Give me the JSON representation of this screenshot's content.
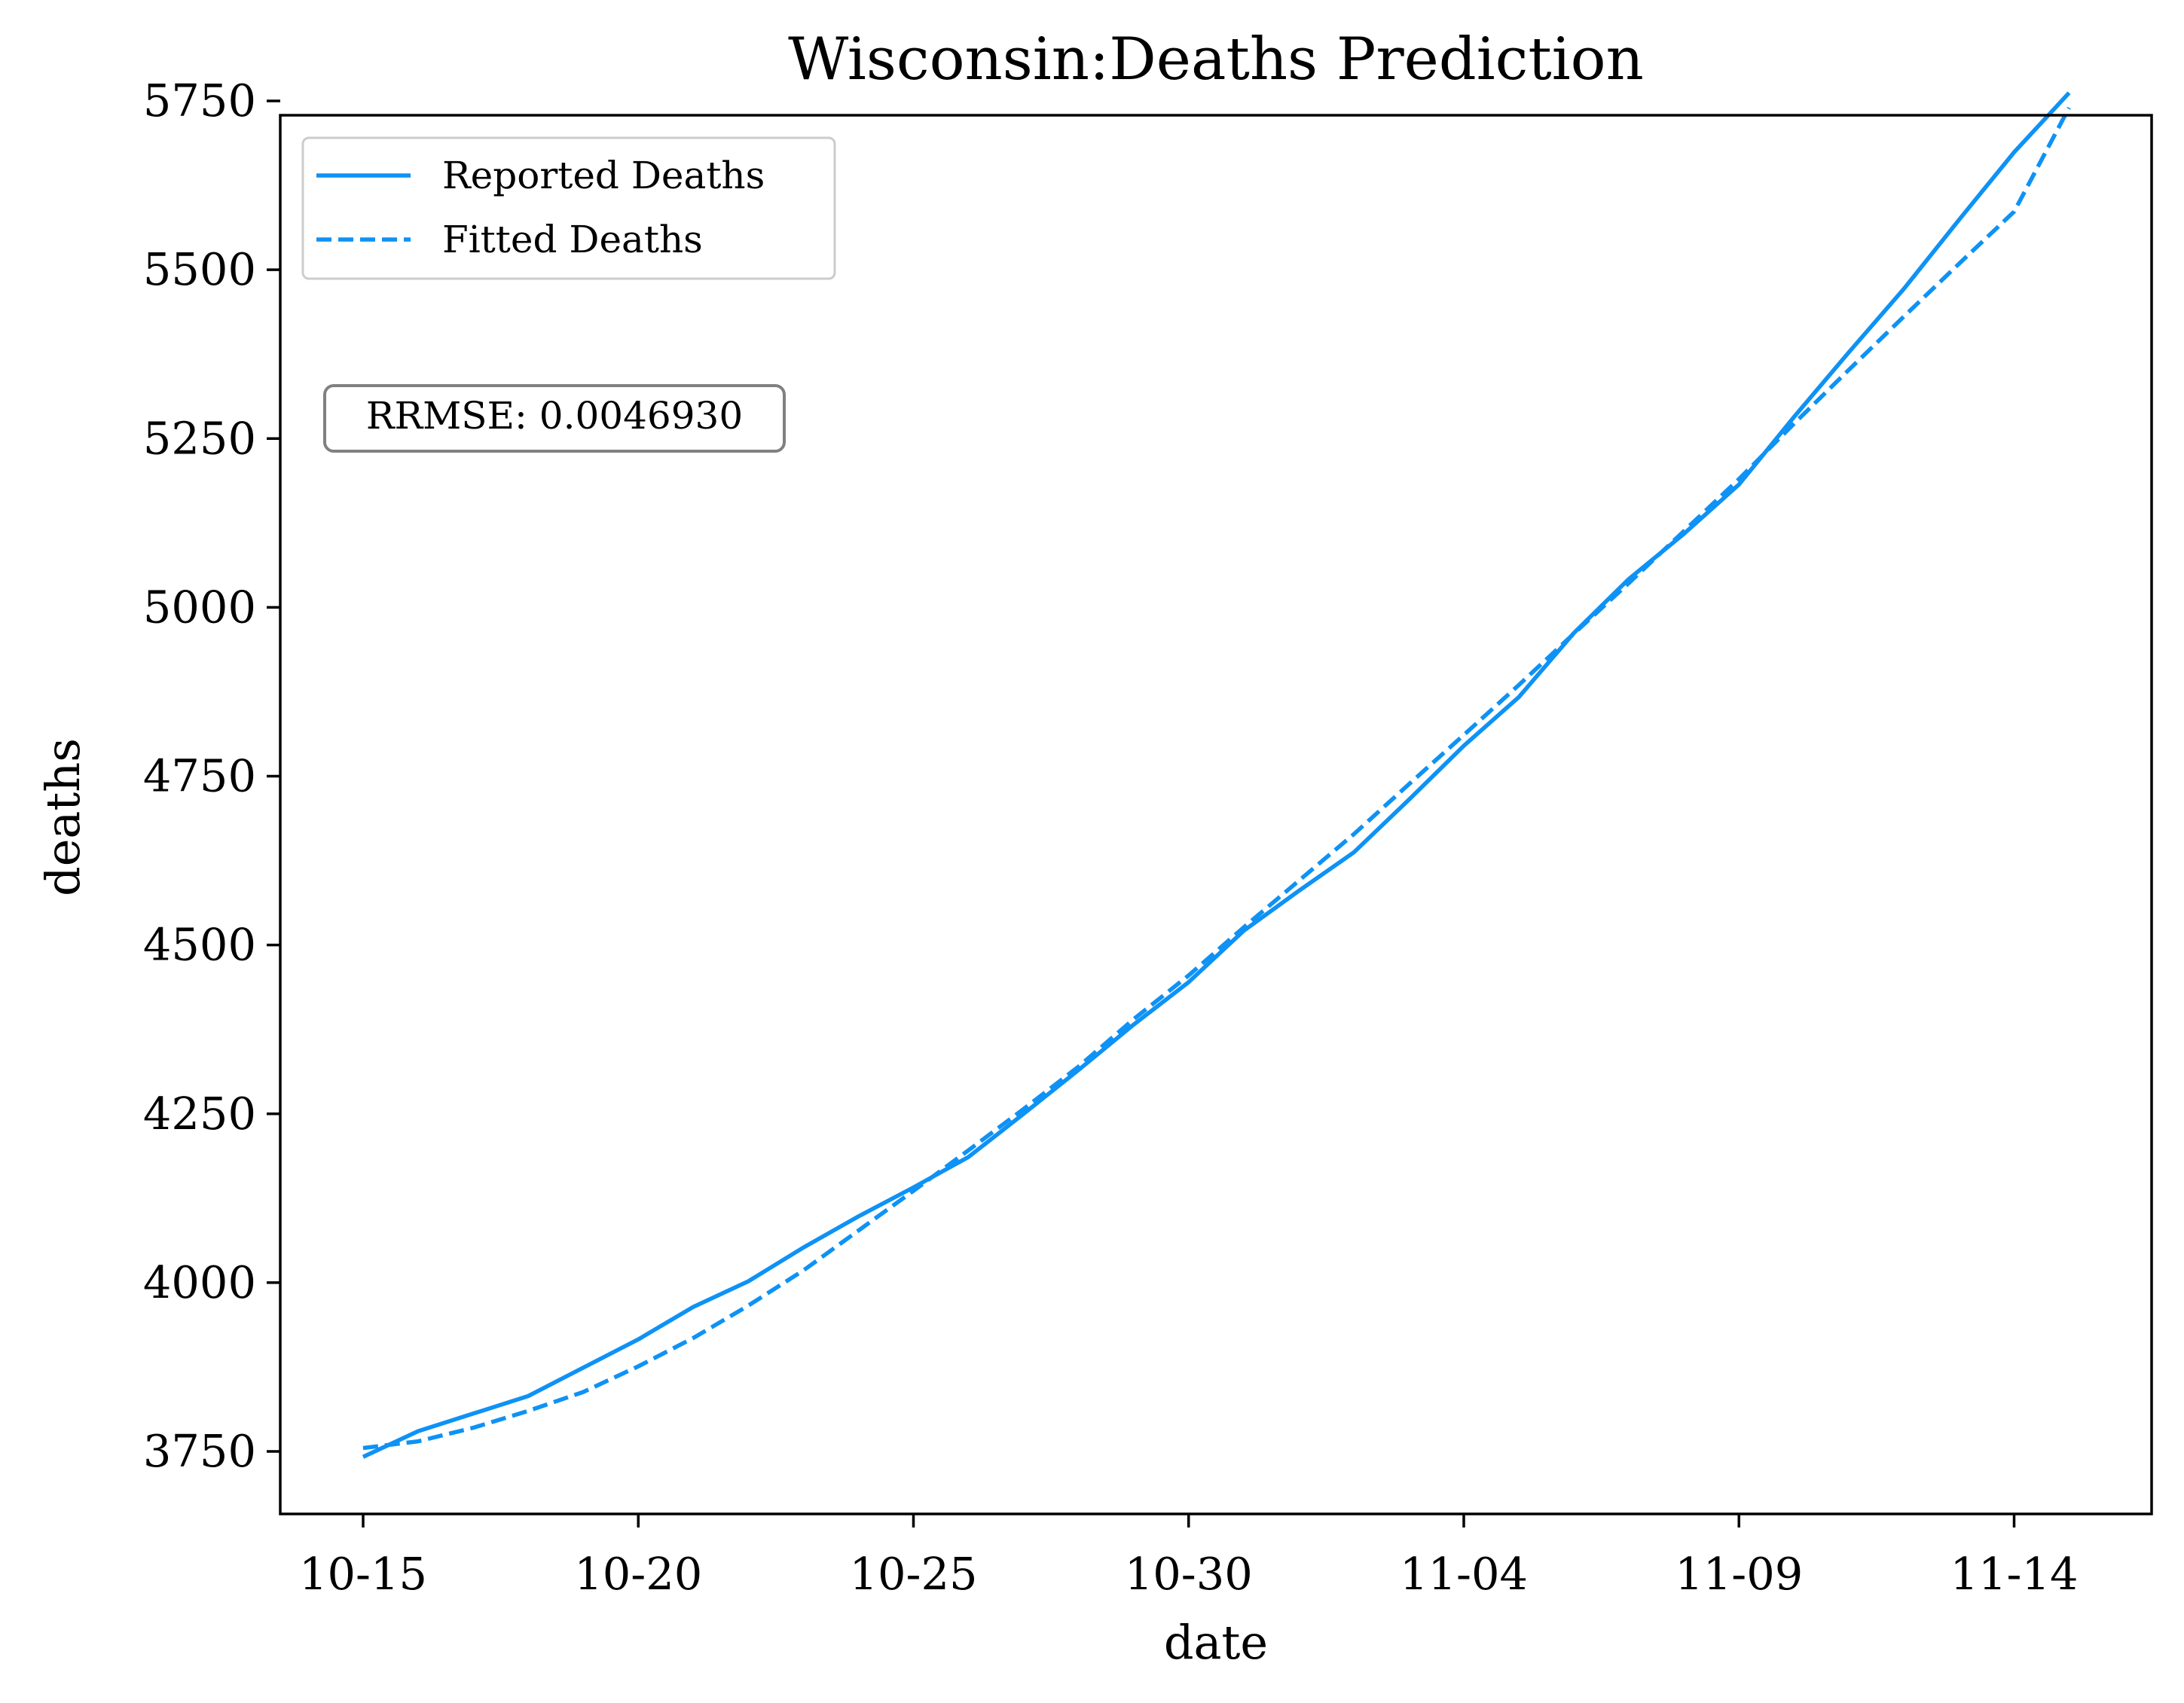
{
  "chart_data": {
    "type": "line",
    "title": "Wisconsin:Deaths Prediction",
    "xlabel": "date",
    "ylabel": "deaths",
    "x": [
      "10-15",
      "10-16",
      "10-17",
      "10-18",
      "10-19",
      "10-20",
      "10-21",
      "10-22",
      "10-23",
      "10-24",
      "10-25",
      "10-26",
      "10-27",
      "10-28",
      "10-29",
      "10-30",
      "10-31",
      "11-01",
      "11-02",
      "11-03",
      "11-04",
      "11-05",
      "11-06",
      "11-07",
      "11-08",
      "11-09",
      "11-10",
      "11-11",
      "11-12",
      "11-13",
      "11-14",
      "11-15"
    ],
    "xticks": [
      "10-15",
      "10-20",
      "10-25",
      "10-30",
      "11-04",
      "11-09",
      "11-14"
    ],
    "yticks": [
      3750,
      4000,
      4250,
      4500,
      4750,
      5000,
      5250,
      5500,
      5750
    ],
    "ylim": [
      3650,
      5870
    ],
    "grid": false,
    "legend_position": "top-left",
    "series": [
      {
        "name": "Reported Deaths",
        "style": "solid",
        "color": "#0e92f5",
        "values": [
          3742,
          3780,
          3806,
          3832,
          3874,
          3916,
          3964,
          4002,
          4052,
          4098,
          4141,
          4186,
          4250,
          4315,
          4382,
          4445,
          4521,
          4580,
          4637,
          4715,
          4795,
          4867,
          4962,
          5042,
          5109,
          5182,
          5282,
          5378,
          5472,
          5574,
          5674,
          5762
        ]
      },
      {
        "name": "Fitted Deaths",
        "style": "dashed",
        "color": "#0e92f5",
        "values": [
          3755,
          3765,
          3785,
          3810,
          3838,
          3876,
          3918,
          3966,
          4018,
          4077,
          4136,
          4196,
          4257,
          4320,
          4390,
          4455,
          4526,
          4595,
          4664,
          4738,
          4811,
          4885,
          4961,
          5036,
          5113,
          5190,
          5272,
          5352,
          5431,
          5509,
          5586,
          5740
        ]
      }
    ],
    "annotation": "RRMSE: 0.0046930"
  }
}
